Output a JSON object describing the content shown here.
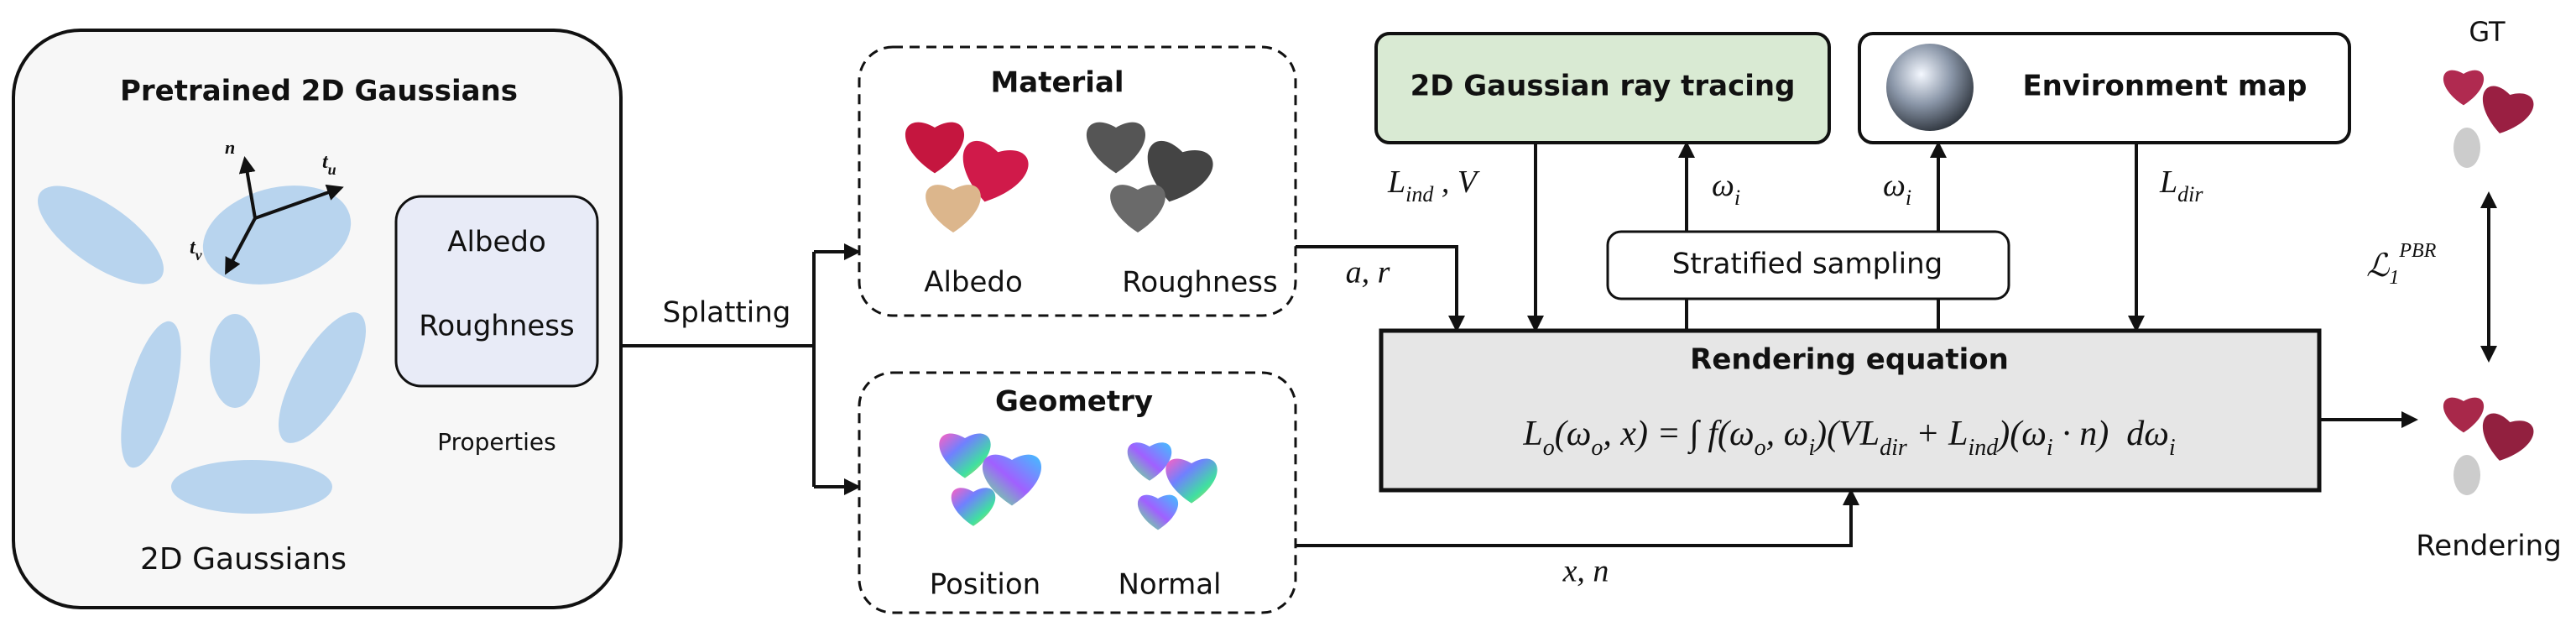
{
  "pretrained": {
    "title": "Pretrained 2D Gaussians",
    "axes": {
      "n": "n",
      "tu": [
        "t",
        "u"
      ],
      "tv": [
        "t",
        "v"
      ]
    },
    "properties_box": [
      "Albedo",
      "Roughness"
    ],
    "properties_label": "Properties",
    "caption": "2D Gaussians"
  },
  "splatting": "Splatting",
  "material": {
    "title": "Material",
    "items": [
      "Albedo",
      "Roughness"
    ]
  },
  "geometry": {
    "title": "Geometry",
    "items": [
      "Position",
      "Normal"
    ]
  },
  "edges": {
    "a_r": "a, r",
    "x_n": "x, n",
    "l_ind_v": [
      "L",
      "ind",
      " , V"
    ],
    "omega_left": [
      "ω",
      "i"
    ],
    "omega_right": [
      "ω",
      "i"
    ],
    "l_dir": [
      "L",
      "dir"
    ]
  },
  "ray_tracing": "2D Gaussian ray tracing",
  "environment_map": "Environment map",
  "stratified_sampling": "Stratified sampling",
  "rendering_equation": {
    "title": "Rendering equation",
    "parts": [
      "L",
      "o",
      "(ω",
      "o",
      ", x) = ∫ f(ω",
      "o",
      ", ω",
      "i",
      ")(VL",
      "dir",
      " + L",
      "ind",
      ")(ω",
      "i",
      " · n)  dω",
      "i"
    ]
  },
  "output": {
    "gt": "GT",
    "loss": {
      "base": "ℒ",
      "sub": "1",
      "sup": "PBR"
    },
    "rendering": "Rendering"
  }
}
